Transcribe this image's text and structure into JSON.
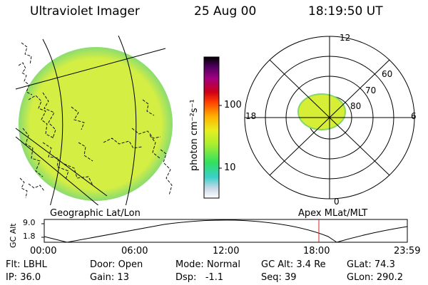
{
  "header": {
    "title": "Ultraviolet Imager",
    "date": "25 Aug 00",
    "time": "18:19:50 UT"
  },
  "colorbar": {
    "unit_label": "photon cm⁻²s⁻¹",
    "ticks": [
      "100",
      "10"
    ]
  },
  "polar_plot": {
    "labels": {
      "mlt_top": "12",
      "mlt_left": "18",
      "mlt_right": "6",
      "mlt_bottom": "0",
      "lat_60": "60",
      "lat_70": "70",
      "lat_80": "80"
    }
  },
  "panel_labels": {
    "geographic": "Geographic Lat/Lon",
    "apex": "Apex MLat/MLT"
  },
  "altitude_plot": {
    "ylabel": "GC Alt",
    "ytick_high": "9.0",
    "ytick_low": "1.8",
    "x_ticks": [
      "00:00",
      "06:00",
      "12:00",
      "18:00",
      "23:59"
    ]
  },
  "info": {
    "row1": [
      {
        "label": "Flt:",
        "value": "LBHL"
      },
      {
        "label": "Door:",
        "value": "Open"
      },
      {
        "label": "Mode:",
        "value": "Normal"
      },
      {
        "label": "GC Alt:",
        "value": "3.4 Re"
      },
      {
        "label": "GLat:",
        "value": "74.3"
      }
    ],
    "row2": [
      {
        "label": "IP:",
        "value": "36.0"
      },
      {
        "label": "Gain:",
        "value": "13"
      },
      {
        "label": "Dsp:",
        "value": "-1.1"
      },
      {
        "label": "Seq:",
        "value": "39"
      },
      {
        "label": "GLon:",
        "value": "290.2"
      }
    ]
  },
  "colors": {
    "disk_fill": "#d2ee44",
    "disk_edge": "#7ad874",
    "oval": "#d8ee30",
    "marker": "#d62020"
  }
}
